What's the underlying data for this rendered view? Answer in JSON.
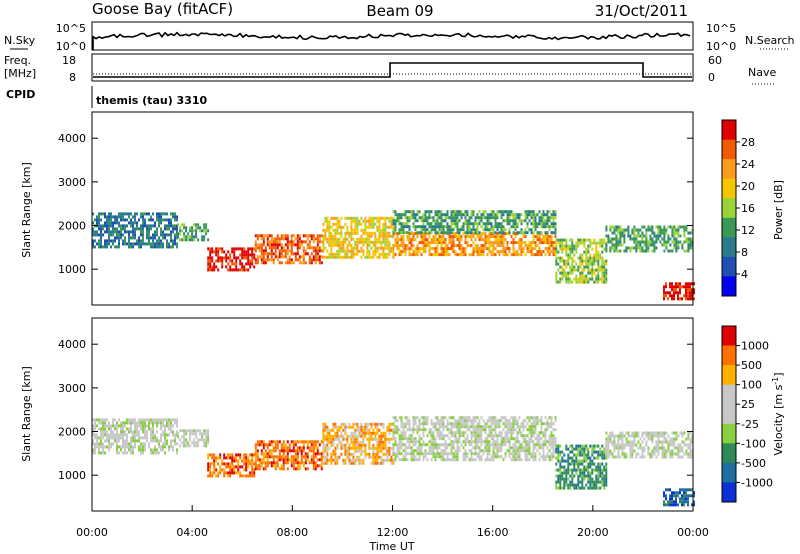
{
  "header": {
    "station": "Goose Bay (fitACF)",
    "beam": "Beam 09",
    "date": "31/Oct/2011"
  },
  "top_panels": {
    "nsky_label": "N.Sky",
    "nsky_ticks": [
      "10^5",
      "10^0"
    ],
    "nsearch_label": "N.Search",
    "nsearch_ticks": [
      "10^5",
      "10^0"
    ],
    "freq_label": "Freq.",
    "freq_unit": "[MHz]",
    "freq_ticks": [
      "18",
      "8"
    ],
    "nave_label": "Nave",
    "nave_ticks": [
      "60",
      "0"
    ],
    "cpid_label": "CPID",
    "cpid_text": "themis (tau) 3310"
  },
  "colors": {
    "power": [
      "#0000ee",
      "#1f4fb3",
      "#2a7c8c",
      "#3a9a55",
      "#9ad23a",
      "#f3c700",
      "#ff9a1a",
      "#f15a00",
      "#e00000"
    ],
    "velocity": [
      "#0a30d6",
      "#1c6fa0",
      "#2e8b57",
      "#88d040",
      "#c8c8c8",
      "#c8c8c8",
      "#ffb000",
      "#ff7000",
      "#e00000"
    ]
  },
  "chart_data": [
    {
      "type": "heatmap",
      "name": "power",
      "ylabel": "Slant Range [km]",
      "xlabel": "",
      "x_range_hours": [
        0,
        24
      ],
      "ylim_km": [
        180,
        4600
      ],
      "yticks": [
        "1000",
        "2000",
        "3000",
        "4000"
      ],
      "colorbar_label": "Power [dB]",
      "colorbar_ticks": [
        "28",
        "24",
        "20",
        "16",
        "12",
        "8",
        "4"
      ],
      "bands": [
        {
          "t0": 0.0,
          "t1": 3.4,
          "r0": 1500,
          "r1": 2300,
          "level": 2
        },
        {
          "t0": 3.4,
          "t1": 4.6,
          "r0": 1650,
          "r1": 2050,
          "level": 3
        },
        {
          "t0": 4.6,
          "t1": 6.5,
          "r0": 1000,
          "r1": 1500,
          "level": 8
        },
        {
          "t0": 6.5,
          "t1": 9.2,
          "r0": 1150,
          "r1": 1800,
          "level": 7
        },
        {
          "t0": 9.2,
          "t1": 12.0,
          "r0": 1300,
          "r1": 2200,
          "level": 5
        },
        {
          "t0": 12.0,
          "t1": 18.5,
          "r0": 1350,
          "r1": 1850,
          "level": 6
        },
        {
          "t0": 12.0,
          "t1": 18.5,
          "r0": 1850,
          "r1": 2350,
          "level": 3
        },
        {
          "t0": 18.5,
          "t1": 20.5,
          "r0": 700,
          "r1": 1700,
          "level": 4
        },
        {
          "t0": 20.5,
          "t1": 24.0,
          "r0": 1400,
          "r1": 2000,
          "level": 3
        },
        {
          "t0": 22.8,
          "t1": 24.0,
          "r0": 300,
          "r1": 700,
          "level": 8
        }
      ]
    },
    {
      "type": "heatmap",
      "name": "velocity",
      "ylabel": "Slant Range [km]",
      "xlabel": "Time UT",
      "x_range_hours": [
        0,
        24
      ],
      "xticks": [
        "00:00",
        "04:00",
        "08:00",
        "12:00",
        "16:00",
        "20:00",
        "00:00"
      ],
      "ylim_km": [
        180,
        4600
      ],
      "yticks": [
        "1000",
        "2000",
        "3000",
        "4000"
      ],
      "colorbar_label": "Velocity [m s",
      "colorbar_label_sup": "-1",
      "colorbar_label_end": "]",
      "colorbar_ticks": [
        "1000",
        "500",
        "100",
        "25",
        "-25",
        "-100",
        "-500",
        "-1000"
      ],
      "bands": [
        {
          "t0": 0.0,
          "t1": 3.4,
          "r0": 1500,
          "r1": 2300,
          "level": 4
        },
        {
          "t0": 3.4,
          "t1": 4.6,
          "r0": 1650,
          "r1": 2050,
          "level": 4
        },
        {
          "t0": 4.6,
          "t1": 6.5,
          "r0": 1000,
          "r1": 1500,
          "level": 7
        },
        {
          "t0": 6.5,
          "t1": 9.2,
          "r0": 1150,
          "r1": 1800,
          "level": 7
        },
        {
          "t0": 9.2,
          "t1": 12.0,
          "r0": 1300,
          "r1": 2200,
          "level": 6
        },
        {
          "t0": 12.0,
          "t1": 18.5,
          "r0": 1350,
          "r1": 2350,
          "level": 4
        },
        {
          "t0": 18.5,
          "t1": 20.5,
          "r0": 700,
          "r1": 1700,
          "level": 2
        },
        {
          "t0": 20.5,
          "t1": 24.0,
          "r0": 1400,
          "r1": 2000,
          "level": 4
        },
        {
          "t0": 22.8,
          "t1": 24.0,
          "r0": 300,
          "r1": 700,
          "level": 1
        }
      ]
    }
  ]
}
